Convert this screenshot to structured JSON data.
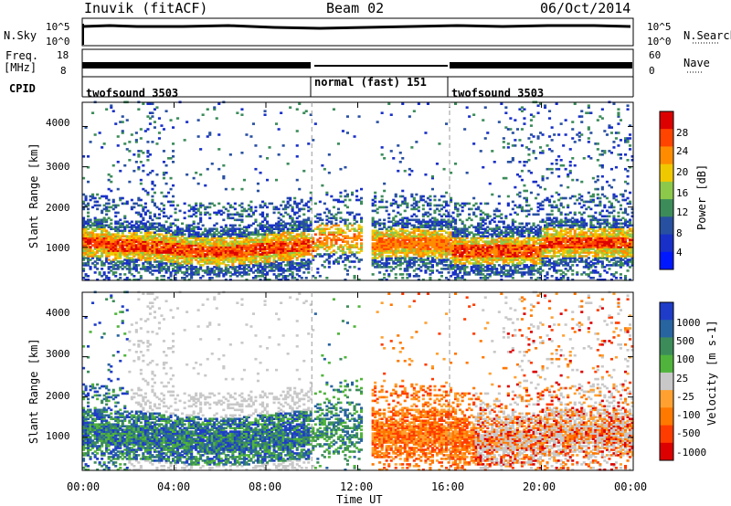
{
  "header": {
    "station": "Inuvik (fitACF)",
    "beam": "Beam 02",
    "date": "06/Oct/2014"
  },
  "strip_panels": {
    "noise": {
      "left_label": "N.Sky",
      "right_label": "N.Search",
      "left_ticks": [
        "10^5",
        "10^0"
      ],
      "right_ticks": [
        "10^5",
        "10^0"
      ]
    },
    "freq": {
      "left_label_1": "Freq.",
      "left_label_2": "[MHz]",
      "left_ticks": [
        "18",
        "8"
      ],
      "right_label": "Nave",
      "right_ticks": [
        "60",
        "0"
      ]
    },
    "cpid": {
      "label": "CPID",
      "modes": [
        {
          "name": "twofsound 3503",
          "start_hour": 0,
          "end_hour": 10
        },
        {
          "name": "normal (fast) 151",
          "start_hour": 10,
          "end_hour": 16
        },
        {
          "name": "twofsound 3503",
          "start_hour": 16,
          "end_hour": 24
        }
      ]
    }
  },
  "chart_data": [
    {
      "type": "heatmap",
      "name": "power",
      "xlabel": "",
      "ylabel": "Slant Range [km]",
      "x_range_hours": [
        0,
        24
      ],
      "yticks": [
        1000,
        2000,
        3000,
        4000
      ],
      "ylim": [
        180,
        4600
      ],
      "colorbar": {
        "label": "Power [dB]",
        "ticks": [
          "28",
          "24",
          "20",
          "16",
          "12",
          "8",
          "4"
        ],
        "colors": [
          "#dd0000",
          "#ff4400",
          "#ff8c00",
          "#f0c800",
          "#8cc84a",
          "#3c8c5a",
          "#2850a0",
          "#1830c8",
          "#0018ff"
        ]
      }
    },
    {
      "type": "heatmap",
      "name": "velocity",
      "xlabel": "Time UT",
      "ylabel": "Slant Range [km]",
      "x_range_hours": [
        0,
        24
      ],
      "xticks": [
        "00:00",
        "04:00",
        "08:00",
        "12:00",
        "16:00",
        "20:00",
        "00:00"
      ],
      "yticks": [
        1000,
        2000,
        3000,
        4000
      ],
      "ylim": [
        180,
        4600
      ],
      "colorbar": {
        "label": "Velocity [m s-1]",
        "ticks": [
          "1000",
          "500",
          "100",
          "25",
          "-25",
          "-100",
          "-500",
          "-1000"
        ],
        "colors": [
          "#1e3cc8",
          "#2864a0",
          "#3c8c5a",
          "#50b43c",
          "#c8c8c8",
          "#ffa030",
          "#ff7800",
          "#ff3c00",
          "#dc0000"
        ]
      }
    }
  ]
}
